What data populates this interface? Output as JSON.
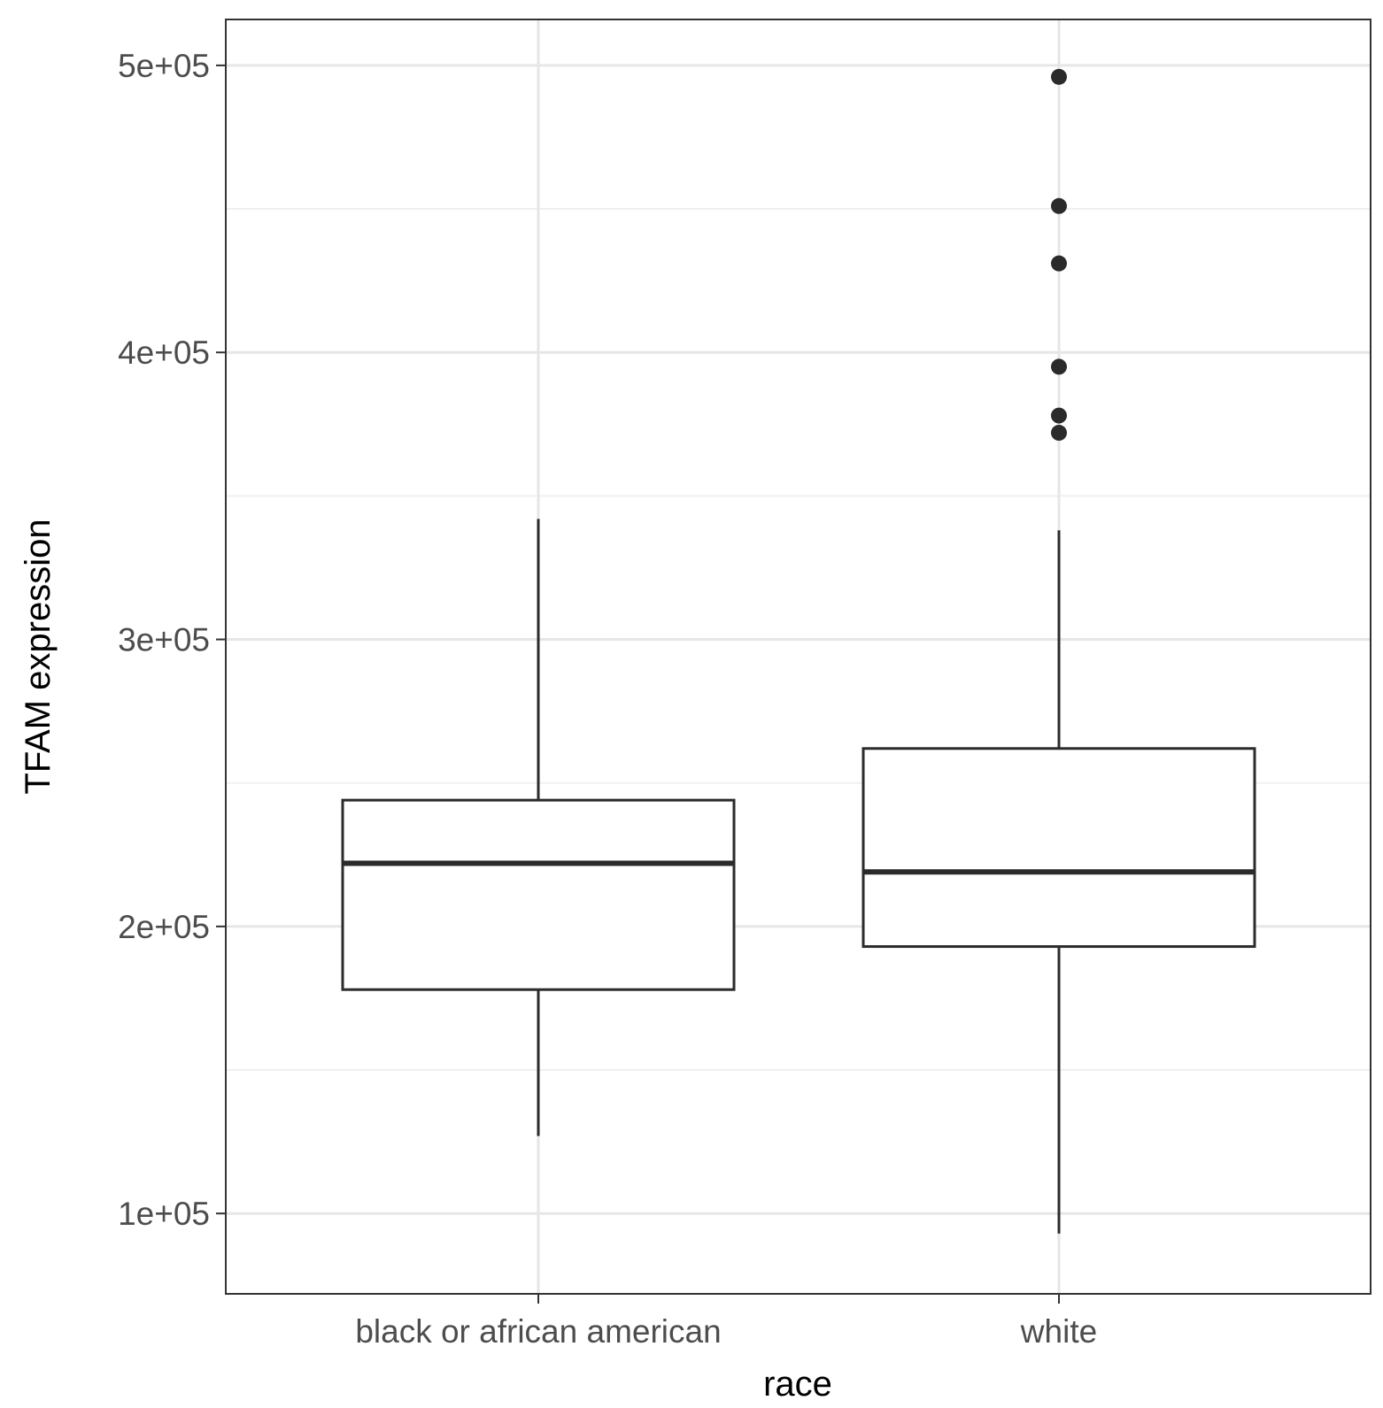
{
  "chart_data": {
    "type": "boxplot",
    "xlabel": "race",
    "ylabel": "TFAM expression",
    "ylim": [
      72000,
      516000
    ],
    "y_ticks": [
      100000,
      200000,
      300000,
      400000,
      500000
    ],
    "y_tick_labels": [
      "1e+05",
      "2e+05",
      "3e+05",
      "4e+05",
      "5e+05"
    ],
    "y_minor_ticks": [
      150000,
      250000,
      350000,
      450000
    ],
    "grid": true,
    "categories": [
      "black or african american",
      "white"
    ],
    "boxes": [
      {
        "category": "black or african american",
        "whisker_low": 127000,
        "q1": 178000,
        "median": 222000,
        "q3": 244000,
        "whisker_high": 342000,
        "outliers": []
      },
      {
        "category": "white",
        "whisker_low": 93000,
        "q1": 193000,
        "median": 219000,
        "q3": 262000,
        "whisker_high": 338000,
        "outliers": [
          496000,
          451000,
          431000,
          395000,
          378000,
          372000
        ]
      }
    ],
    "colors": {
      "box_stroke": "#2b2b2b",
      "box_fill": "#ffffff",
      "outlier": "#2b2b2b",
      "grid_major": "#e6e6e6",
      "grid_minor": "#f0f0f0",
      "panel_border": "#333333",
      "tick_label": "#4d4d4d",
      "axis_title": "#000000"
    }
  }
}
